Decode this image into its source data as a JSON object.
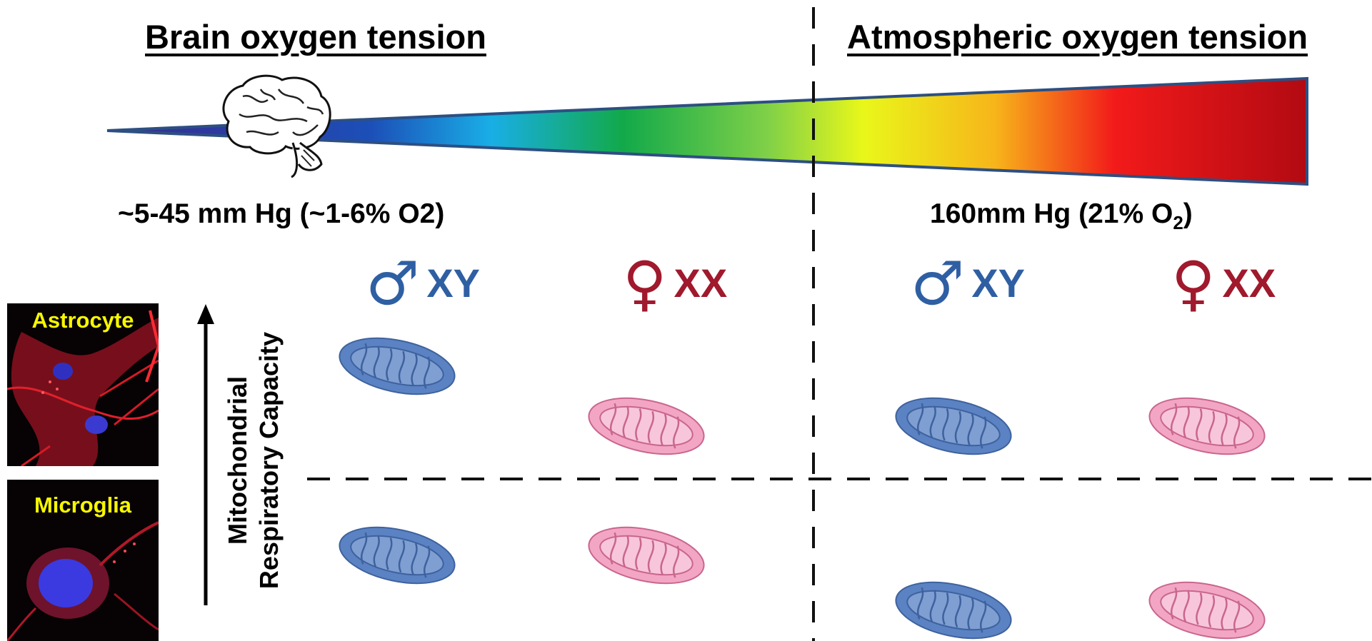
{
  "left_title": "Brain oxygen tension",
  "right_title": "Atmospheric oxygen tension",
  "left_pressure": "~5-45 mm Hg (~1-6% O2)",
  "right_pressure_main": "160mm Hg (21% O",
  "right_pressure_sub": "2",
  "right_pressure_end": ")",
  "sex_labels": {
    "male_symbol": "♂",
    "male_text": "XY",
    "female_symbol": "♀",
    "female_text": "XX"
  },
  "cells": {
    "astrocyte": "Astrocyte",
    "microglia": "Microglia"
  },
  "axis": {
    "line1": "Mitochondrial",
    "line2": "Respiratory Capacity"
  },
  "colors": {
    "male": "#2f5fa3",
    "female": "#a0192c",
    "male_mito": "#5b82c2",
    "female_mito": "#f3a6c4",
    "gradient": [
      "#3b2a8f",
      "#1c7fd8",
      "#17b03e",
      "#e6f51b",
      "#f5a31a",
      "#e8151b",
      "#b30a10"
    ]
  },
  "icons": [
    "brain-icon",
    "mitochondrion-icon",
    "male-symbol-icon",
    "female-symbol-icon",
    "up-arrow-icon"
  ]
}
